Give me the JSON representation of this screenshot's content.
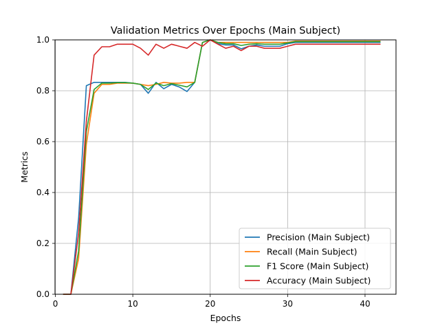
{
  "chart_data": {
    "type": "line",
    "title": "Validation Metrics Over Epochs (Main Subject)",
    "xlabel": "Epochs",
    "ylabel": "Metrics",
    "xlim": [
      -0.05,
      44
    ],
    "ylim": [
      0,
      1
    ],
    "xticks": [
      0,
      10,
      20,
      30,
      40
    ],
    "yticks": [
      0.0,
      0.2,
      0.4,
      0.6,
      0.8,
      1.0
    ],
    "grid": true,
    "legend_position": "lower-right",
    "x": [
      1,
      2,
      3,
      4,
      5,
      6,
      7,
      8,
      9,
      10,
      11,
      12,
      13,
      14,
      15,
      16,
      17,
      18,
      19,
      20,
      21,
      22,
      23,
      24,
      25,
      26,
      27,
      28,
      29,
      30,
      31,
      32,
      33,
      34,
      35,
      36,
      37,
      38,
      39,
      40,
      41,
      42
    ],
    "series": [
      {
        "name": "Precision (Main Subject)",
        "color": "#1f77b4",
        "values": [
          0,
          0,
          0.3,
          0.82,
          0.833,
          0.833,
          0.833,
          0.833,
          0.833,
          0.83,
          0.825,
          0.79,
          0.833,
          0.808,
          0.825,
          0.815,
          0.797,
          0.833,
          0.99,
          1.0,
          0.985,
          0.98,
          0.98,
          0.965,
          0.975,
          0.98,
          0.975,
          0.975,
          0.975,
          0.985,
          0.99,
          0.99,
          0.99,
          0.99,
          0.99,
          0.99,
          0.99,
          0.99,
          0.99,
          0.99,
          0.99,
          0.99
        ]
      },
      {
        "name": "Recall (Main Subject)",
        "color": "#ff7f0e",
        "values": [
          0,
          0,
          0.14,
          0.59,
          0.79,
          0.825,
          0.825,
          0.83,
          0.83,
          0.83,
          0.825,
          0.82,
          0.825,
          0.833,
          0.83,
          0.83,
          0.833,
          0.833,
          0.99,
          1.0,
          0.99,
          0.99,
          0.99,
          0.99,
          0.99,
          0.99,
          0.99,
          0.99,
          0.99,
          0.99,
          0.995,
          0.995,
          0.995,
          0.995,
          0.995,
          0.995,
          0.995,
          0.995,
          0.995,
          0.995,
          0.995,
          0.995
        ]
      },
      {
        "name": "F1 Score (Main Subject)",
        "color": "#2ca02c",
        "values": [
          0,
          0,
          0.17,
          0.64,
          0.805,
          0.83,
          0.83,
          0.832,
          0.832,
          0.83,
          0.825,
          0.805,
          0.83,
          0.82,
          0.828,
          0.822,
          0.815,
          0.833,
          0.99,
          1.0,
          0.99,
          0.985,
          0.985,
          0.978,
          0.983,
          0.985,
          0.983,
          0.983,
          0.983,
          0.988,
          0.993,
          0.993,
          0.993,
          0.993,
          0.993,
          0.993,
          0.993,
          0.993,
          0.993,
          0.993,
          0.993,
          0.993
        ]
      },
      {
        "name": "Accuracy (Main Subject)",
        "color": "#d62728",
        "values": [
          0,
          0,
          0.24,
          0.68,
          0.94,
          0.973,
          0.973,
          0.983,
          0.983,
          0.983,
          0.967,
          0.94,
          0.983,
          0.967,
          0.983,
          0.975,
          0.967,
          0.99,
          0.975,
          1.0,
          0.983,
          0.967,
          0.975,
          0.958,
          0.975,
          0.975,
          0.967,
          0.967,
          0.967,
          0.975,
          0.983,
          0.983,
          0.983,
          0.983,
          0.983,
          0.983,
          0.983,
          0.983,
          0.983,
          0.983,
          0.983,
          0.983
        ]
      }
    ]
  }
}
